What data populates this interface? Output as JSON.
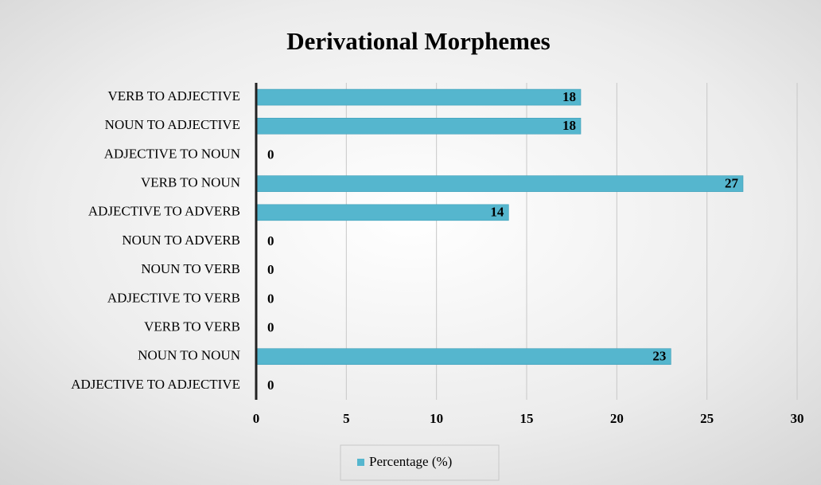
{
  "chart_data": {
    "type": "bar",
    "orientation": "horizontal",
    "title": "Derivational Morphemes",
    "categories": [
      "VERB TO ADJECTIVE",
      "NOUN TO ADJECTIVE",
      "ADJECTIVE TO NOUN",
      "VERB TO NOUN",
      "ADJECTIVE TO ADVERB",
      "NOUN TO ADVERB",
      "NOUN TO VERB",
      "ADJECTIVE TO VERB",
      "VERB TO VERB",
      "NOUN TO NOUN",
      "ADJECTIVE TO ADJECTIVE"
    ],
    "series": [
      {
        "name": "Percentage (%)",
        "color": "#55b6ce",
        "values": [
          18,
          18,
          0,
          27,
          14,
          0,
          0,
          0,
          0,
          23,
          0
        ]
      }
    ],
    "xlim": [
      0,
      30
    ],
    "xticks": [
      0,
      5,
      10,
      15,
      20,
      25,
      30
    ],
    "grid": true,
    "legend": "bottom"
  }
}
